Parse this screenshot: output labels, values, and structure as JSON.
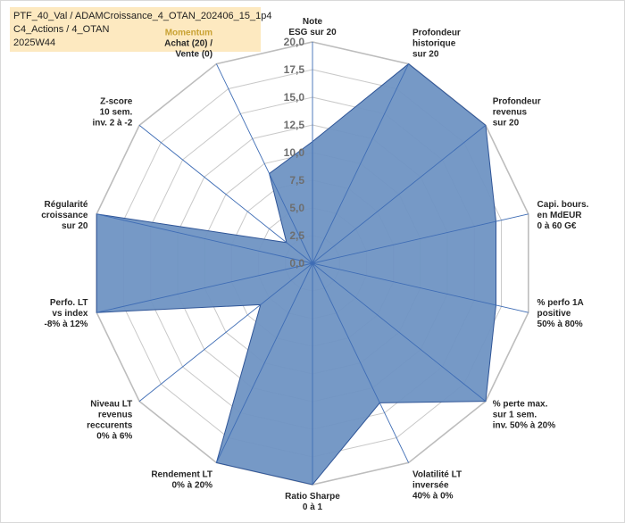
{
  "title_box": {
    "line1": "PTF_40_Val / ADAMCroissance_4_OTAN_202406_15_1p4",
    "line2": "C4_Actions / 4_OTAN",
    "line3": "2025W44"
  },
  "colors": {
    "fill": "#6f94c3",
    "stroke": "#2f5597",
    "spoke": "#3f6db5",
    "grid": "#c9c9c9",
    "title_bg": "#fde9c0",
    "accent_label": "#c9a233"
  },
  "chart_data": {
    "type": "radar",
    "title": "",
    "range": [
      0,
      20
    ],
    "tick_labels": [
      "0,0",
      "2,5",
      "5,0",
      "7,5",
      "10,0",
      "12,5",
      "15,0",
      "17,5",
      "20,0"
    ],
    "axes": [
      {
        "label": [
          "Note",
          "ESG sur 20"
        ]
      },
      {
        "label": [
          "Profondeur",
          "historique",
          "sur 20"
        ]
      },
      {
        "label": [
          "Profondeur",
          "revenus",
          "sur 20"
        ]
      },
      {
        "label": [
          "Capi. bours.",
          "en MdEUR",
          "0 à 60 G€"
        ]
      },
      {
        "label": [
          "% perfo 1A",
          "positive",
          "50% à 80%"
        ]
      },
      {
        "label": [
          "% perte max.",
          "sur 1 sem.",
          "inv. 50% à 20%"
        ]
      },
      {
        "label": [
          "Volatilité LT",
          "inversée",
          "40% à 0%"
        ]
      },
      {
        "label": [
          "Ratio Sharpe",
          "0 à 1"
        ]
      },
      {
        "label": [
          "Rendement LT",
          "0% à 20%"
        ]
      },
      {
        "label": [
          "Niveau LT",
          "revenus",
          "reccurents",
          "0% à 6%"
        ]
      },
      {
        "label": [
          "Perfo. LT",
          "vs index",
          "-8% à 12%"
        ]
      },
      {
        "label": [
          "Régularité",
          "croissance",
          "sur 20"
        ]
      },
      {
        "label": [
          "Z-score",
          "10 sem.",
          "inv. 2 à -2"
        ]
      },
      {
        "label": [
          "Momentum",
          "Achat (20) /",
          "Vente (0)"
        ],
        "accent_first_line": true
      }
    ],
    "series": [
      {
        "values": [
          11.0,
          20.0,
          20.0,
          17.0,
          17.0,
          20.0,
          14.0,
          20.0,
          20.0,
          6.0,
          20.0,
          20.0,
          3.0,
          9.0
        ]
      }
    ]
  }
}
